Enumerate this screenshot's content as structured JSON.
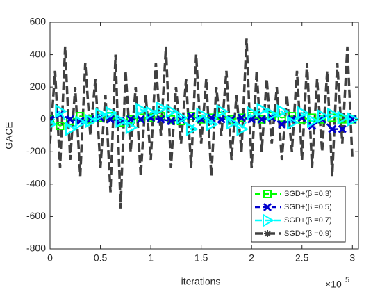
{
  "chart_data": {
    "type": "line",
    "xlabel": "iterations",
    "ylabel": "GACE",
    "x_multiplier": "×10",
    "x_exponent": "5",
    "xlim": [
      0,
      306000
    ],
    "ylim": [
      -800,
      600
    ],
    "xticks": [
      0,
      {
        "value": 50000,
        "label": "0.5"
      },
      {
        "value": 100000,
        "label": "1"
      },
      {
        "value": 150000,
        "label": "1.5"
      },
      {
        "value": 200000,
        "label": "2"
      },
      {
        "value": 250000,
        "label": "2.5"
      },
      {
        "value": 300000,
        "label": "3"
      }
    ],
    "yticks": [
      -800,
      -600,
      -400,
      -200,
      0,
      200,
      400,
      600
    ],
    "grid": false,
    "legend": "southeast",
    "series": [
      {
        "name": "SGD+(β =0.3)",
        "color": "#00ff00",
        "marker": "square",
        "x": [
          0,
          10000,
          20000,
          30000,
          40000,
          50000,
          60000,
          70000,
          80000,
          90000,
          100000,
          110000,
          120000,
          130000,
          140000,
          150000,
          160000,
          170000,
          180000,
          190000,
          200000,
          210000,
          220000,
          230000,
          240000,
          250000,
          260000,
          270000,
          280000,
          290000,
          300000
        ],
        "values": [
          0,
          -40,
          -10,
          20,
          0,
          10,
          20,
          -20,
          0,
          10,
          10,
          20,
          0,
          -10,
          20,
          0,
          10,
          20,
          0,
          10,
          20,
          0,
          20,
          10,
          20,
          0,
          10,
          0,
          10,
          0,
          0
        ]
      },
      {
        "name": "SGD+(β =0.5)",
        "color": "#0000cd",
        "marker": "x",
        "x": [
          0,
          10000,
          20000,
          30000,
          40000,
          50000,
          60000,
          70000,
          80000,
          90000,
          100000,
          110000,
          120000,
          130000,
          140000,
          150000,
          160000,
          170000,
          180000,
          190000,
          200000,
          210000,
          220000,
          230000,
          240000,
          250000,
          260000,
          270000,
          280000,
          290000,
          300000
        ],
        "values": [
          0,
          30,
          0,
          -10,
          0,
          10,
          0,
          -10,
          0,
          0,
          10,
          0,
          -10,
          0,
          20,
          0,
          10,
          0,
          0,
          10,
          0,
          0,
          10,
          -30,
          0,
          10,
          -40,
          0,
          -60,
          -60,
          0
        ]
      },
      {
        "name": "SGD+(β =0.7)",
        "color": "#00ffff",
        "marker": "triangle-right",
        "x": [
          0,
          10000,
          20000,
          30000,
          40000,
          50000,
          60000,
          70000,
          80000,
          90000,
          100000,
          110000,
          120000,
          130000,
          140000,
          150000,
          160000,
          170000,
          180000,
          190000,
          200000,
          210000,
          220000,
          230000,
          240000,
          250000,
          260000,
          270000,
          280000,
          290000,
          300000
        ],
        "values": [
          -30,
          50,
          -60,
          -20,
          -10,
          30,
          40,
          -10,
          -50,
          60,
          40,
          70,
          50,
          10,
          -60,
          30,
          -30,
          50,
          -20,
          -60,
          40,
          60,
          30,
          50,
          -20,
          40,
          -10,
          20,
          30,
          10,
          0
        ]
      },
      {
        "name": "SGD+(β =0.9)",
        "color": "#404040",
        "marker": "asterisk",
        "x": [
          0,
          5000,
          10000,
          15000,
          20000,
          25000,
          30000,
          35000,
          40000,
          45000,
          50000,
          55000,
          60000,
          65000,
          70000,
          75000,
          80000,
          85000,
          90000,
          95000,
          100000,
          105000,
          110000,
          115000,
          120000,
          125000,
          130000,
          135000,
          140000,
          145000,
          150000,
          155000,
          160000,
          165000,
          170000,
          175000,
          180000,
          185000,
          190000,
          195000,
          200000,
          205000,
          210000,
          215000,
          220000,
          225000,
          230000,
          235000,
          240000,
          245000,
          250000,
          255000,
          260000,
          265000,
          270000,
          275000,
          280000,
          285000,
          290000,
          295000,
          300000
        ],
        "values": [
          -150,
          300,
          -300,
          450,
          -250,
          200,
          -350,
          350,
          -100,
          250,
          -300,
          150,
          -450,
          400,
          -550,
          300,
          -200,
          200,
          -350,
          150,
          -250,
          350,
          -100,
          450,
          -300,
          200,
          -150,
          250,
          -300,
          400,
          -150,
          250,
          -350,
          200,
          -100,
          300,
          -250,
          150,
          -200,
          500,
          -300,
          300,
          -200,
          250,
          -150,
          200,
          -250,
          150,
          -200,
          300,
          -250,
          350,
          -300,
          250,
          -200,
          300,
          -350,
          350,
          -150,
          450,
          -250
        ]
      }
    ]
  }
}
